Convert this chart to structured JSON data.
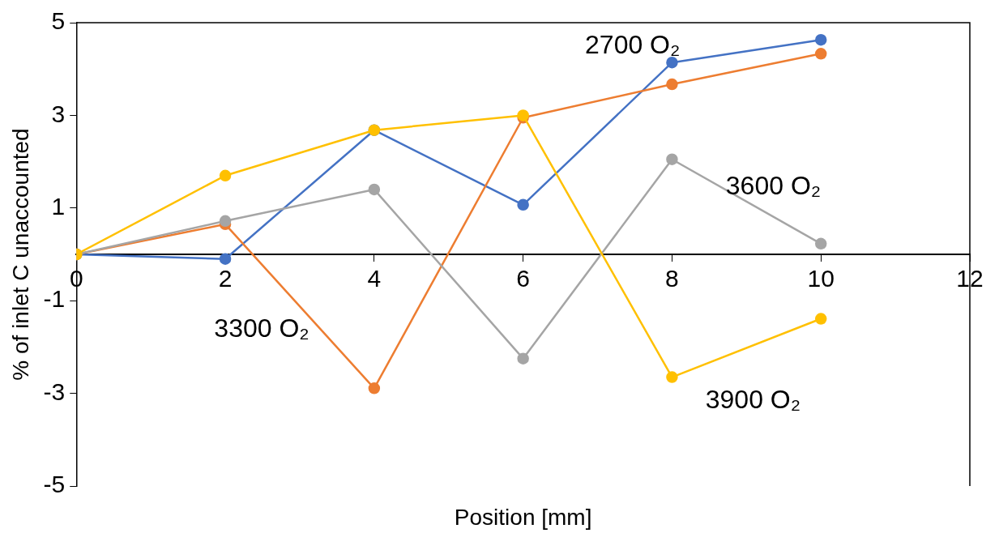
{
  "chart_data": {
    "type": "line",
    "xlabel": "Position [mm]",
    "ylabel": "% of inlet C unaccounted",
    "x": [
      0,
      2,
      4,
      6,
      8,
      10
    ],
    "series": [
      {
        "name": "2700 O₂",
        "color": "#4472c4",
        "values": [
          0,
          -0.1,
          2.68,
          1.07,
          4.14,
          4.63
        ]
      },
      {
        "name": "3300 O₂",
        "color": "#ed7d31",
        "values": [
          0,
          0.65,
          -2.89,
          2.95,
          3.67,
          4.33
        ]
      },
      {
        "name": "3600 O₂",
        "color": "#a5a5a5",
        "values": [
          0,
          0.72,
          1.4,
          -2.25,
          2.05,
          0.23
        ]
      },
      {
        "name": "3900 O₂",
        "color": "#ffc000",
        "values": [
          0,
          1.7,
          2.68,
          3.0,
          -2.65,
          -1.39
        ]
      }
    ],
    "xlim": [
      0,
      12
    ],
    "xticks": [
      0,
      2,
      4,
      6,
      8,
      10,
      12
    ],
    "ylim": [
      -5,
      5
    ],
    "yticks": [
      -5,
      -3,
      -1,
      1,
      3,
      5
    ],
    "grid": false,
    "legend": false,
    "marker": "circle",
    "line_style": "solid"
  }
}
